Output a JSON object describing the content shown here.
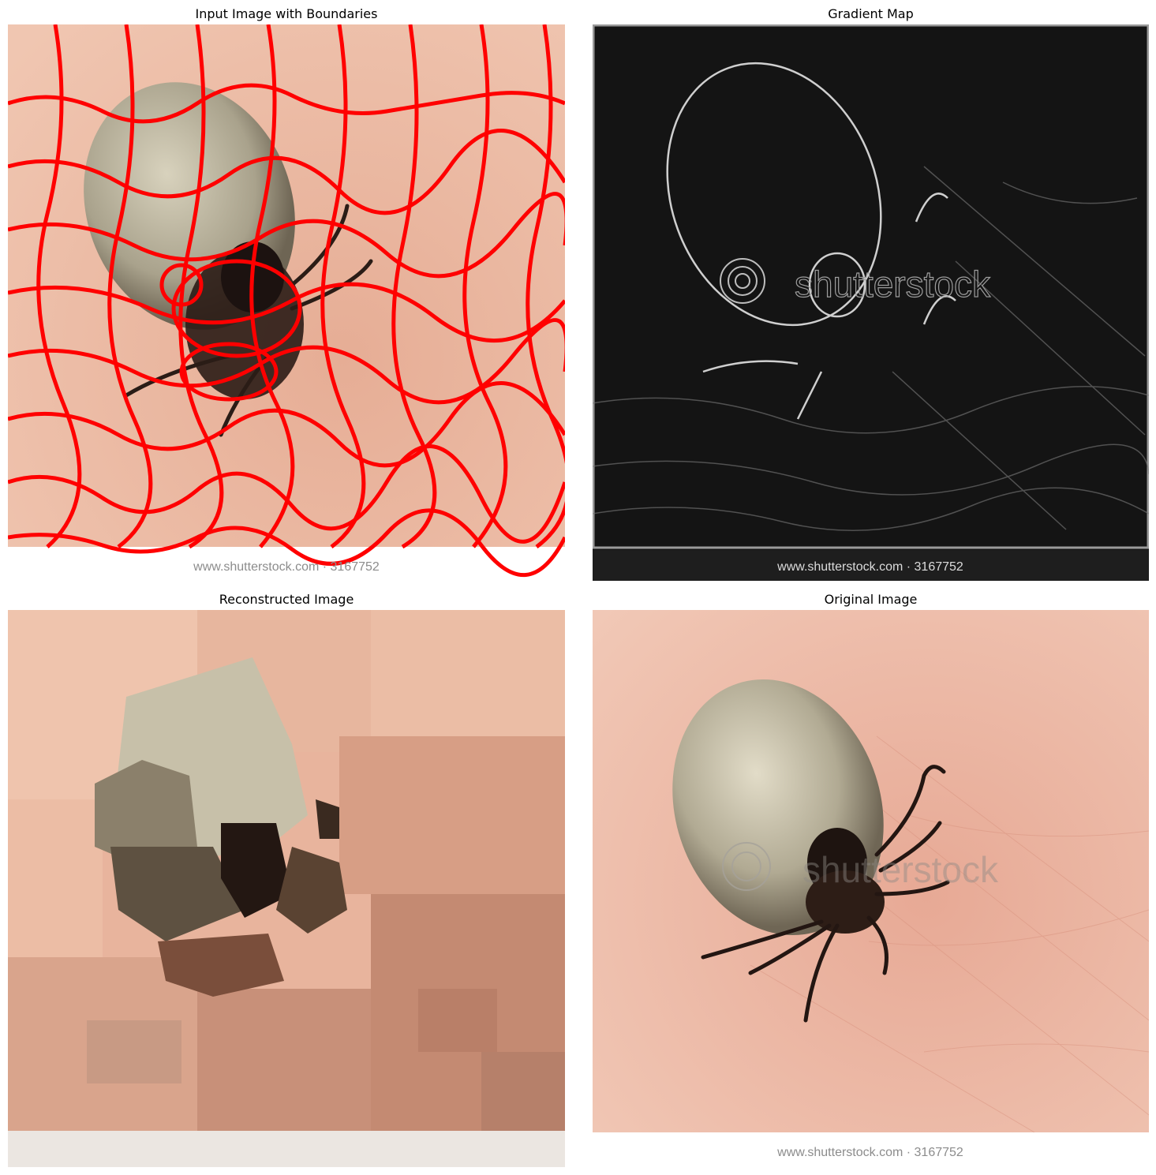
{
  "figure": {
    "panels": [
      {
        "title": "Input Image with Boundaries"
      },
      {
        "title": "Gradient Map"
      },
      {
        "title": "Reconstructed Image"
      },
      {
        "title": "Original Image"
      }
    ]
  },
  "photo": {
    "watermark": "shutterstock",
    "footer": "www.shutterstock.com · 3167752"
  },
  "colors": {
    "skin": "#e9b49c",
    "skin_light": "#efc3ad",
    "tick_body": "#b8b29c",
    "tick_dark": "#2a1c16",
    "boundary": "#ff0000",
    "gradient_bg": "#111111",
    "gradient_line": "#d8d8d8"
  }
}
